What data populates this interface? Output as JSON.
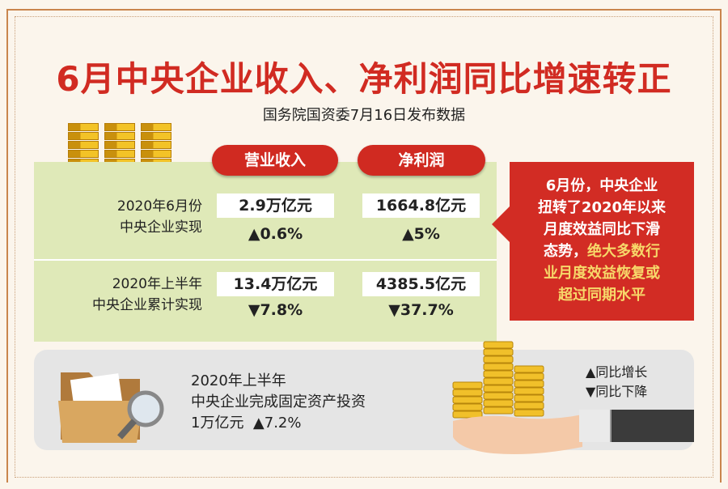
{
  "title": "6月中央企业收入、净利润同比增速转正",
  "subtitle": "国务院国资委7月16日发布数据",
  "columns": {
    "revenue": "营业收入",
    "profit": "净利润"
  },
  "rows": [
    {
      "label_line1": "2020年6月份",
      "label_line2": "中央企业实现",
      "revenue": "2.9万亿元",
      "revenue_change": "▲0.6%",
      "profit": "1664.8亿元",
      "profit_change": "▲5%"
    },
    {
      "label_line1": "2020年上半年",
      "label_line2": "中央企业累计实现",
      "revenue": "13.4万亿元",
      "revenue_change": "▼7.8%",
      "profit": "4385.5亿元",
      "profit_change": "▼37.7%"
    }
  ],
  "callout": {
    "line1": "6月份，中央企业",
    "line2": "扭转了2020年以来",
    "line3": "月度效益同比下滑",
    "line4a": "态势，",
    "line4b": "绝大多数行",
    "line5": "业月度效益恢复或",
    "line6": "超过同期水平"
  },
  "investment": {
    "line1": "2020年上半年",
    "line2": "中央企业完成固定资产投资",
    "amount": "1万亿元",
    "change": "▲7.2%"
  },
  "legend": {
    "up": "▲同比增长",
    "down": "▼同比下降"
  },
  "colors": {
    "red": "#d12b22",
    "green_panel": "#dfe9b8",
    "gold": "#f3c327"
  }
}
